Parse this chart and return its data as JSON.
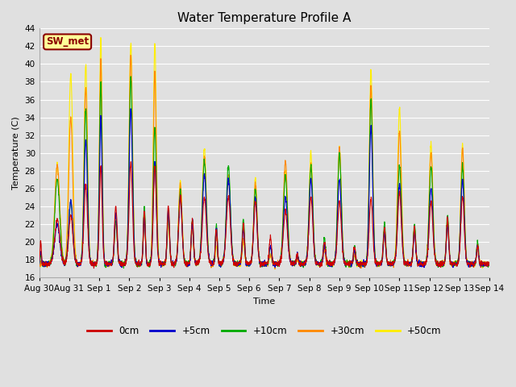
{
  "title": "Water Temperature Profile A",
  "xlabel": "Time",
  "ylabel": "Temperature (C)",
  "ylim": [
    16,
    44
  ],
  "yticks": [
    16,
    18,
    20,
    22,
    24,
    26,
    28,
    30,
    32,
    34,
    36,
    38,
    40,
    42,
    44
  ],
  "background_color": "#e0e0e0",
  "plot_bg_color": "#e0e0e0",
  "annotation_text": "SW_met",
  "annotation_bg": "#ffff99",
  "annotation_border": "#8b0000",
  "annotation_text_color": "#8b0000",
  "series_colors": {
    "0cm": "#cc0000",
    "+5cm": "#0000cc",
    "+10cm": "#00aa00",
    "+30cm": "#ff8800",
    "+50cm": "#ffee00"
  },
  "x_tick_labels": [
    "Aug 30",
    "Aug 31",
    "Sep 1",
    "Sep 2",
    "Sep 3",
    "Sep 4",
    "Sep 5",
    "Sep 6",
    "Sep 7",
    "Sep 8",
    "Sep 9",
    "Sep 10",
    "Sep 11",
    "Sep 12",
    "Sep 13",
    "Sep 14"
  ],
  "title_fontsize": 11,
  "axis_fontsize": 8,
  "tick_fontsize": 7.5
}
